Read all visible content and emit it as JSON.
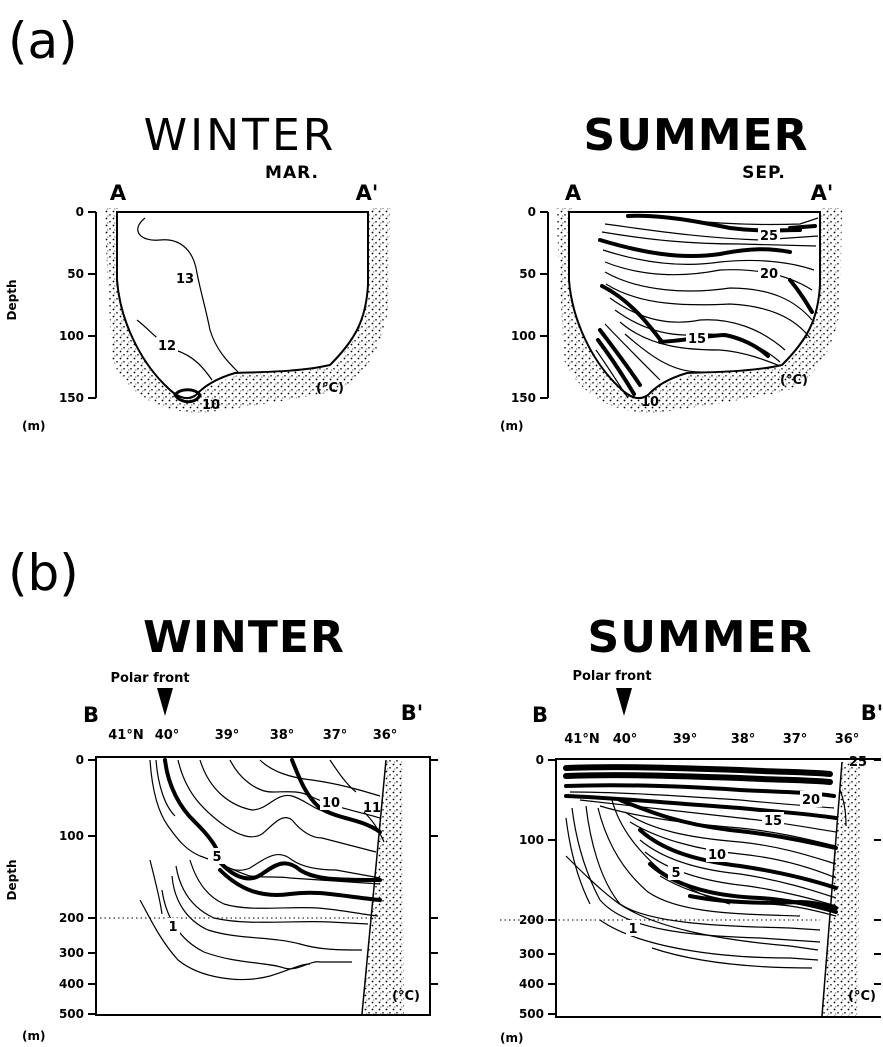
{
  "panels": {
    "a": {
      "letter": "(a)",
      "winter": {
        "title": "WINTER",
        "month": "MAR.",
        "start": "A",
        "end": "A'",
        "depth_ticks": [
          "0",
          "50",
          "100",
          "150"
        ],
        "depth_unit": "(m)",
        "axis_title": "Depth",
        "temp_unit": "(°C)",
        "isotherm_labels": [
          "13",
          "12",
          "10"
        ]
      },
      "summer": {
        "title": "SUMMER",
        "month": "SEP.",
        "start": "A",
        "end": "A'",
        "depth_ticks": [
          "0",
          "50",
          "100",
          "150"
        ],
        "depth_unit": "(m)",
        "temp_unit": "(°C)",
        "isotherm_labels": [
          "25",
          "20",
          "15",
          "10"
        ]
      }
    },
    "b": {
      "letter": "(b)",
      "winter": {
        "title": "WINTER",
        "front": "Polar front",
        "start": "B",
        "end": "B'",
        "latitudes": [
          "41°N",
          "40°",
          "39°",
          "38°",
          "37°",
          "36°"
        ],
        "depth_ticks": [
          "0",
          "100",
          "200",
          "300",
          "400",
          "500"
        ],
        "depth_unit": "(m)",
        "axis_title": "Depth",
        "temp_unit": "(°C)",
        "isotherm_labels": [
          "10",
          "11",
          "5",
          "1"
        ]
      },
      "summer": {
        "title": "SUMMER",
        "front": "Polar front",
        "start": "B",
        "end": "B'",
        "latitudes": [
          "41°N",
          "40°",
          "39°",
          "38°",
          "37°",
          "36°"
        ],
        "depth_ticks": [
          "0",
          "100",
          "200",
          "300",
          "400",
          "500"
        ],
        "depth_unit": "(m)",
        "temp_unit": "(°C)",
        "isotherm_labels": [
          "25",
          "20",
          "15",
          "10",
          "5",
          "1"
        ]
      }
    }
  }
}
